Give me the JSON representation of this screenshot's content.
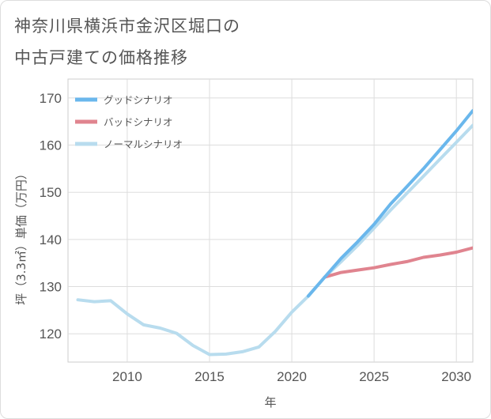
{
  "title_line1": "神奈川県横浜市金沢区堀口の",
  "title_line2": "中古戸建ての価格推移",
  "chart_data": {
    "type": "line",
    "title": "神奈川県横浜市金沢区堀口の中古戸建ての価格推移",
    "xlabel": "年",
    "ylabel": "坪（3.3㎡）単価（万円）",
    "xlim": [
      2006.4,
      2031
    ],
    "ylim": [
      114,
      174
    ],
    "xticks": [
      2010,
      2015,
      2020,
      2025,
      2030
    ],
    "yticks": [
      120,
      130,
      140,
      150,
      160,
      170
    ],
    "grid": true,
    "legend_position": "top-left",
    "series": [
      {
        "name": "グッドシナリオ",
        "color": "#6ab7ec",
        "x": [
          2021,
          2022,
          2023,
          2024,
          2025,
          2026,
          2027,
          2028,
          2029,
          2030,
          2031
        ],
        "y": [
          128.0,
          132.0,
          136.0,
          139.5,
          143.2,
          147.5,
          151.2,
          155.0,
          159.0,
          163.0,
          167.3
        ]
      },
      {
        "name": "バッドシナリオ",
        "color": "#e0848f",
        "x": [
          2022,
          2023,
          2024,
          2025,
          2026,
          2027,
          2028,
          2029,
          2030,
          2031
        ],
        "y": [
          132.0,
          133.0,
          133.5,
          134.0,
          134.7,
          135.3,
          136.2,
          136.7,
          137.3,
          138.2
        ]
      },
      {
        "name": "ノーマルシナリオ",
        "color": "#b8dcee",
        "x": [
          2007,
          2008,
          2009,
          2010,
          2011,
          2012,
          2013,
          2014,
          2015,
          2016,
          2017,
          2018,
          2019,
          2020,
          2021,
          2022,
          2023,
          2024,
          2025,
          2026,
          2027,
          2028,
          2029,
          2030,
          2031
        ],
        "y": [
          127.2,
          126.8,
          127.0,
          124.2,
          121.9,
          121.2,
          120.1,
          117.5,
          115.6,
          115.7,
          116.2,
          117.2,
          120.5,
          124.6,
          128.0,
          132.0,
          135.3,
          138.7,
          142.4,
          146.2,
          149.8,
          153.4,
          157.0,
          160.6,
          164.2
        ]
      }
    ]
  }
}
